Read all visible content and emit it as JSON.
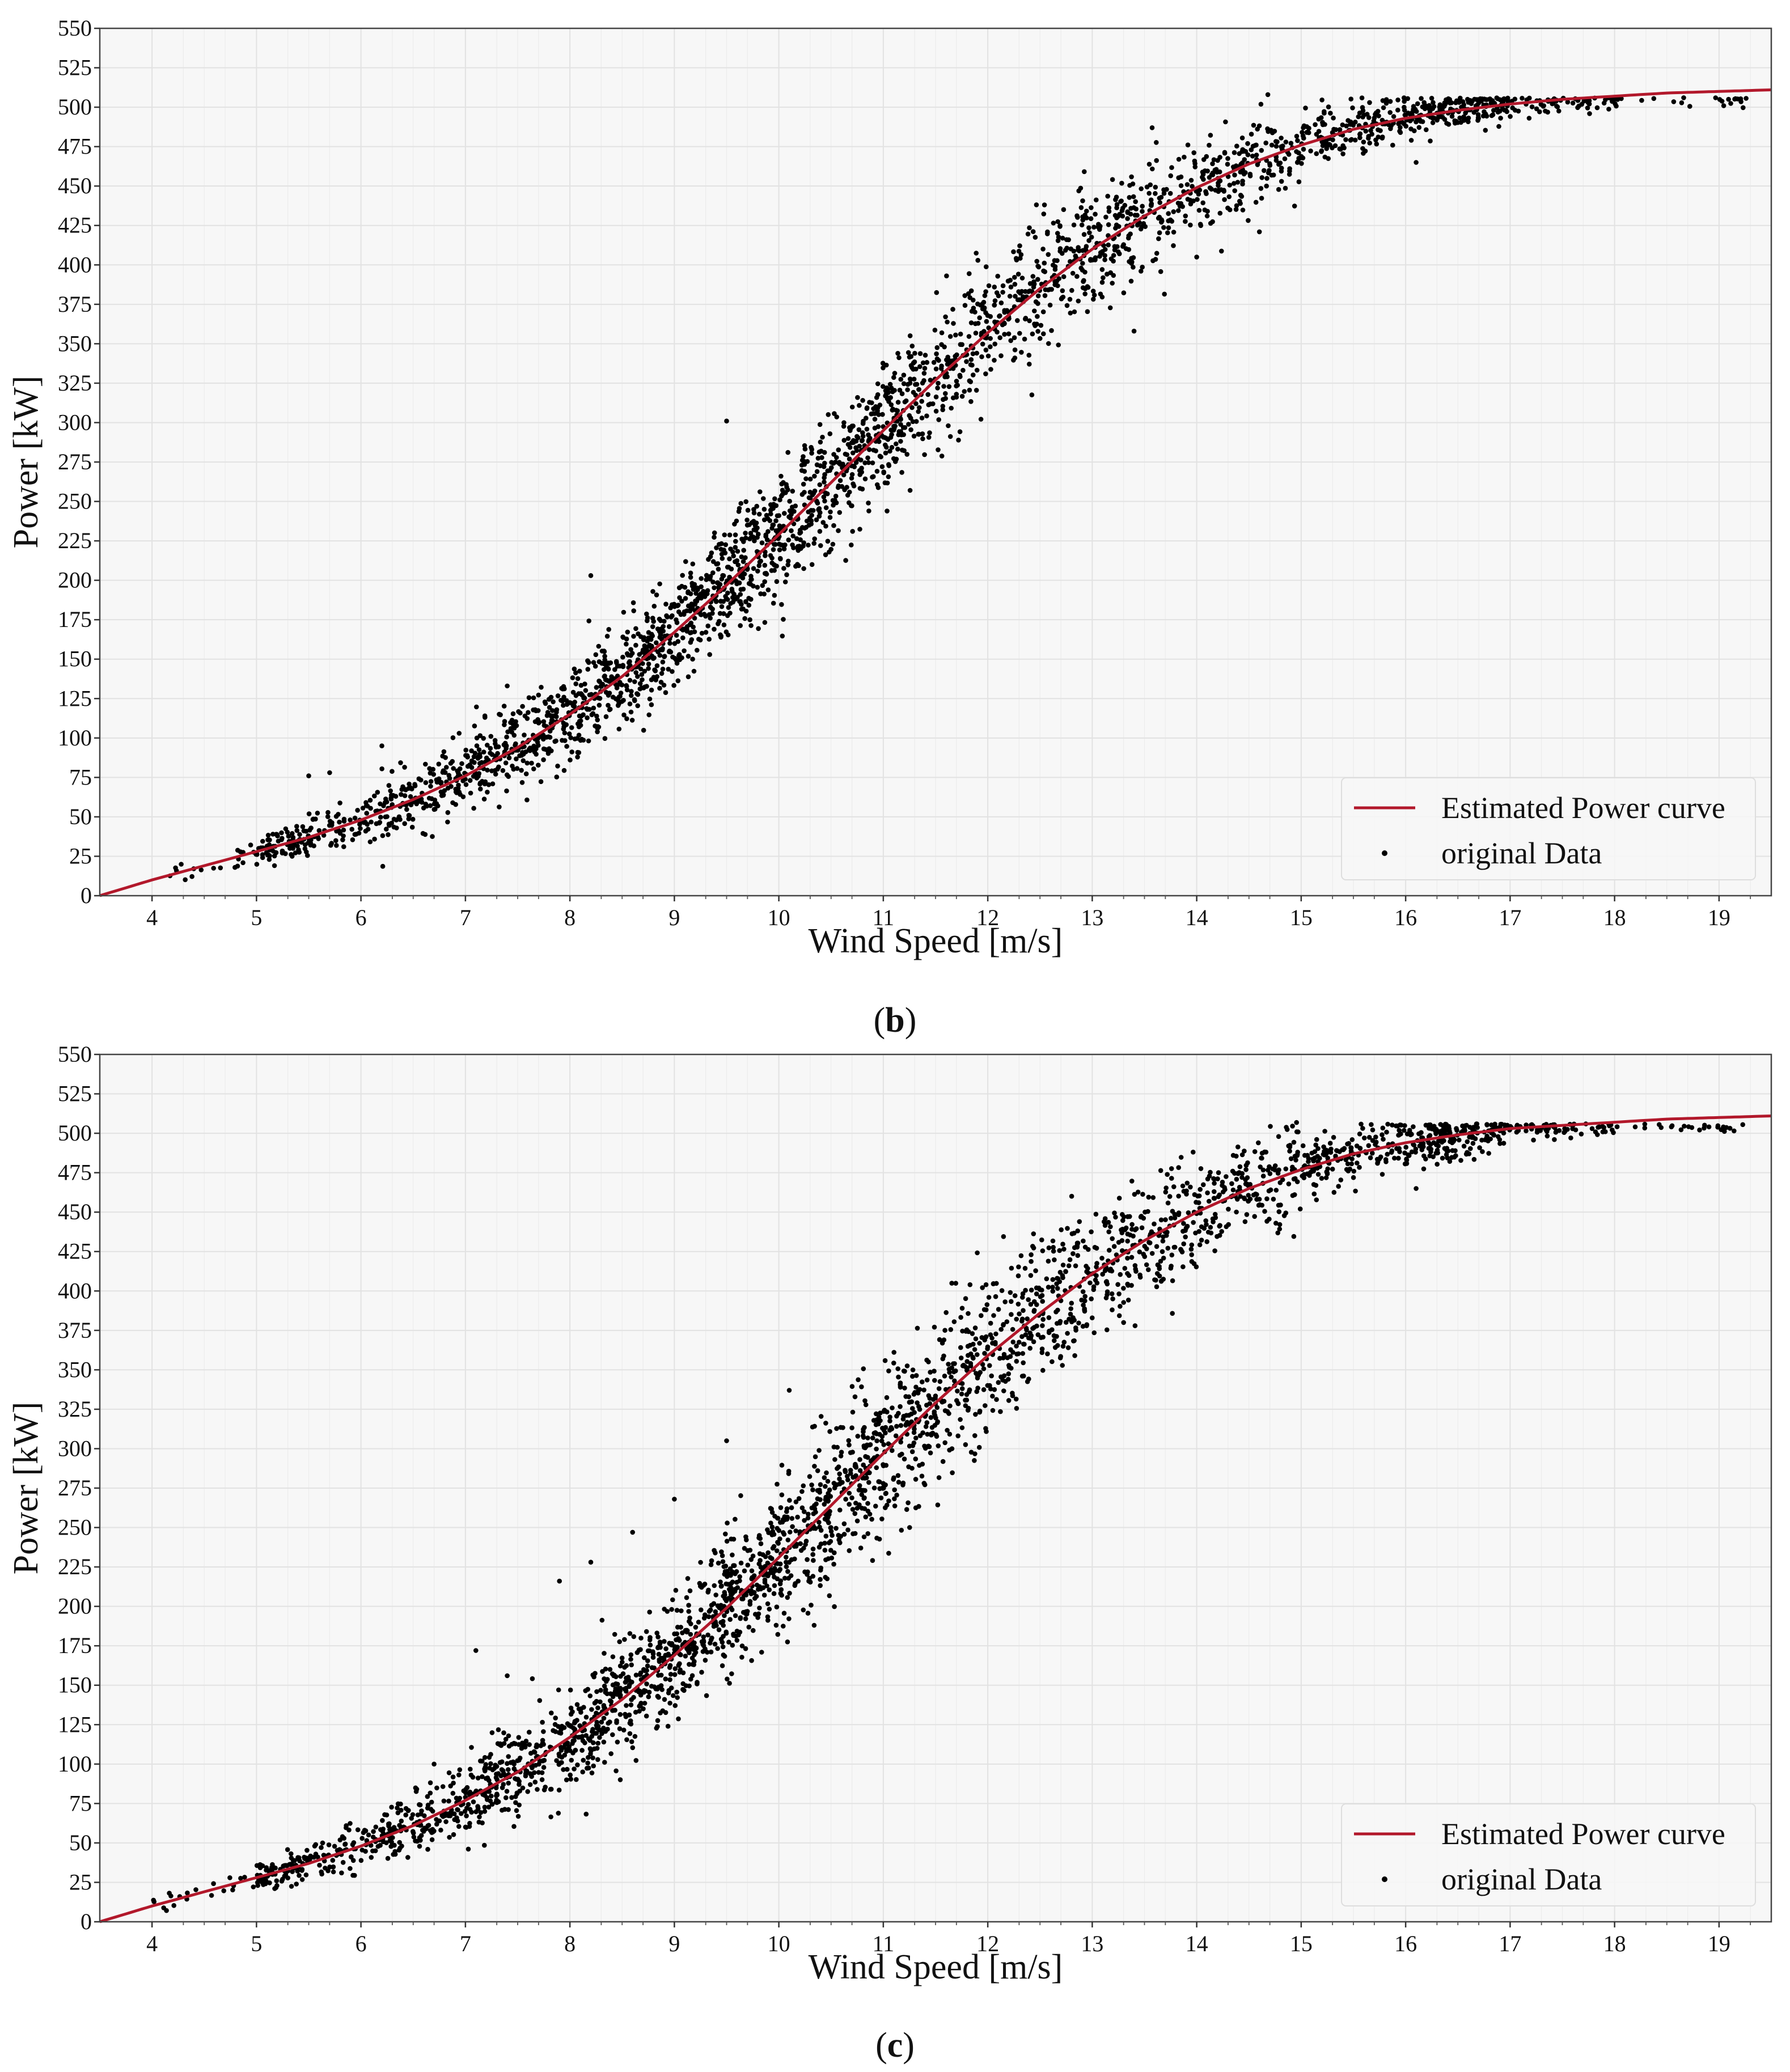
{
  "colors": {
    "curve": "#b2182b",
    "points": "#000000",
    "plot_background": "#f7f7f7"
  },
  "chart_data": [
    {
      "panel_label": "b",
      "type": "scatter",
      "xlabel": "Wind Speed [m/s]",
      "ylabel": "Power [kW]",
      "xlim": [
        3.5,
        19.5
      ],
      "ylim": [
        0,
        550
      ],
      "x_ticks": [
        "4",
        "5",
        "6",
        "7",
        "8",
        "9",
        "10",
        "11",
        "12",
        "13",
        "14",
        "15",
        "16",
        "17",
        "18",
        "19"
      ],
      "y_ticks": [
        "0",
        "25",
        "50",
        "75",
        "100",
        "125",
        "150",
        "175",
        "200",
        "225",
        "250",
        "275",
        "300",
        "325",
        "350",
        "375",
        "400",
        "425",
        "450",
        "475",
        "500",
        "525",
        "550"
      ],
      "grid": true,
      "legend": {
        "position": "lower-right",
        "entries": [
          "Estimated Power curve",
          "original Data"
        ]
      },
      "series": [
        {
          "name": "Estimated Power curve",
          "kind": "line",
          "x": [
            3.5,
            4,
            4.5,
            5,
            5.5,
            6,
            6.5,
            7,
            7.5,
            8,
            8.5,
            9,
            9.5,
            10,
            10.5,
            11,
            11.5,
            12,
            12.5,
            13,
            13.5,
            14,
            14.5,
            15,
            15.5,
            16,
            16.5,
            17,
            17.5,
            18,
            18.5,
            19,
            19.5
          ],
          "y": [
            0,
            10,
            19,
            28,
            37,
            48,
            61,
            76,
            94,
            115,
            139,
            167,
            197,
            229,
            262,
            295,
            327,
            357,
            385,
            410,
            431,
            449,
            464,
            476,
            486,
            493,
            498,
            502,
            505,
            507,
            509,
            510,
            511
          ]
        },
        {
          "name": "original Data",
          "kind": "scatter",
          "density": [
            {
              "x0": 4.0,
              "x1": 5.0,
              "n": 20,
              "spread": 4
            },
            {
              "x0": 5.0,
              "x1": 5.5,
              "n": 80,
              "spread": 5
            },
            {
              "x0": 5.5,
              "x1": 6.2,
              "n": 80,
              "spread": 7
            },
            {
              "x0": 6.2,
              "x1": 7.0,
              "n": 150,
              "spread": 10
            },
            {
              "x0": 7.0,
              "x1": 8.0,
              "n": 250,
              "spread": 13
            },
            {
              "x0": 8.0,
              "x1": 9.0,
              "n": 320,
              "spread": 16
            },
            {
              "x0": 9.0,
              "x1": 10.0,
              "n": 360,
              "spread": 18
            },
            {
              "x0": 10.0,
              "x1": 11.0,
              "n": 320,
              "spread": 20
            },
            {
              "x0": 11.0,
              "x1": 12.0,
              "n": 280,
              "spread": 22
            },
            {
              "x0": 12.0,
              "x1": 13.0,
              "n": 230,
              "spread": 21
            },
            {
              "x0": 13.0,
              "x1": 14.0,
              "n": 200,
              "spread": 17
            },
            {
              "x0": 14.0,
              "x1": 15.0,
              "n": 180,
              "spread": 14
            },
            {
              "x0": 15.0,
              "x1": 16.0,
              "n": 160,
              "spread": 9
            },
            {
              "x0": 16.0,
              "x1": 17.0,
              "n": 180,
              "spread": 6
            },
            {
              "x0": 17.0,
              "x1": 18.0,
              "n": 60,
              "spread": 4
            },
            {
              "x0": 18.0,
              "x1": 19.3,
              "n": 25,
              "spread": 2
            }
          ],
          "outliers": [
            {
              "x": 5.5,
              "y": 76
            },
            {
              "x": 5.7,
              "y": 78
            },
            {
              "x": 6.2,
              "y": 95
            },
            {
              "x": 7.4,
              "y": 133
            },
            {
              "x": 8.2,
              "y": 203
            },
            {
              "x": 9.5,
              "y": 301
            },
            {
              "x": 10.4,
              "y": 222
            },
            {
              "x": 11.7,
              "y": 318
            },
            {
              "x": 13.4,
              "y": 358
            },
            {
              "x": 14.0,
              "y": 405
            },
            {
              "x": 14.6,
              "y": 421
            },
            {
              "x": 16.1,
              "y": 465
            }
          ]
        }
      ]
    },
    {
      "panel_label": "c",
      "type": "scatter",
      "xlabel": "Wind Speed [m/s]",
      "ylabel": "Power [kW]",
      "xlim": [
        3.5,
        19.5
      ],
      "ylim": [
        0,
        550
      ],
      "x_ticks": [
        "4",
        "5",
        "6",
        "7",
        "8",
        "9",
        "10",
        "11",
        "12",
        "13",
        "14",
        "15",
        "16",
        "17",
        "18",
        "19"
      ],
      "y_ticks": [
        "0",
        "25",
        "50",
        "75",
        "100",
        "125",
        "150",
        "175",
        "200",
        "225",
        "250",
        "275",
        "300",
        "325",
        "350",
        "375",
        "400",
        "425",
        "450",
        "475",
        "500",
        "525",
        "550"
      ],
      "grid": true,
      "legend": {
        "position": "lower-right",
        "entries": [
          "Estimated Power curve",
          "original Data"
        ]
      },
      "series": [
        {
          "name": "Estimated Power curve",
          "kind": "line",
          "x": [
            3.5,
            4,
            4.5,
            5,
            5.5,
            6,
            6.5,
            7,
            7.5,
            8,
            8.5,
            9,
            9.5,
            10,
            10.5,
            11,
            11.5,
            12,
            12.5,
            13,
            13.5,
            14,
            14.5,
            15,
            15.5,
            16,
            16.5,
            17,
            17.5,
            18,
            18.5,
            19,
            19.5
          ],
          "y": [
            0,
            10,
            19,
            28,
            37,
            48,
            61,
            77,
            95,
            117,
            141,
            169,
            199,
            231,
            264,
            297,
            329,
            359,
            386,
            411,
            432,
            450,
            465,
            477,
            487,
            494,
            499,
            503,
            505,
            507,
            509,
            510,
            511
          ]
        },
        {
          "name": "original Data",
          "kind": "scatter",
          "density": [
            {
              "x0": 4.0,
              "x1": 5.0,
              "n": 20,
              "spread": 4
            },
            {
              "x0": 5.0,
              "x1": 5.5,
              "n": 80,
              "spread": 5
            },
            {
              "x0": 5.5,
              "x1": 6.2,
              "n": 80,
              "spread": 7
            },
            {
              "x0": 6.2,
              "x1": 7.0,
              "n": 150,
              "spread": 10
            },
            {
              "x0": 7.0,
              "x1": 8.0,
              "n": 250,
              "spread": 14
            },
            {
              "x0": 8.0,
              "x1": 9.0,
              "n": 320,
              "spread": 18
            },
            {
              "x0": 9.0,
              "x1": 10.0,
              "n": 360,
              "spread": 21
            },
            {
              "x0": 10.0,
              "x1": 11.0,
              "n": 330,
              "spread": 24
            },
            {
              "x0": 11.0,
              "x1": 12.0,
              "n": 300,
              "spread": 26
            },
            {
              "x0": 12.0,
              "x1": 13.0,
              "n": 250,
              "spread": 24
            },
            {
              "x0": 13.0,
              "x1": 14.0,
              "n": 210,
              "spread": 19
            },
            {
              "x0": 14.0,
              "x1": 15.0,
              "n": 180,
              "spread": 14
            },
            {
              "x0": 15.0,
              "x1": 16.0,
              "n": 160,
              "spread": 10
            },
            {
              "x0": 16.0,
              "x1": 17.0,
              "n": 180,
              "spread": 7
            },
            {
              "x0": 17.0,
              "x1": 18.0,
              "n": 60,
              "spread": 5
            },
            {
              "x0": 18.0,
              "x1": 19.3,
              "n": 25,
              "spread": 2
            }
          ],
          "outliers": [
            {
              "x": 6.7,
              "y": 100
            },
            {
              "x": 7.1,
              "y": 172
            },
            {
              "x": 7.4,
              "y": 156
            },
            {
              "x": 7.9,
              "y": 216
            },
            {
              "x": 8.2,
              "y": 228
            },
            {
              "x": 8.6,
              "y": 247
            },
            {
              "x": 9.0,
              "y": 268
            },
            {
              "x": 9.5,
              "y": 305
            },
            {
              "x": 10.1,
              "y": 337
            },
            {
              "x": 10.4,
              "y": 223
            },
            {
              "x": 13.3,
              "y": 380
            },
            {
              "x": 16.1,
              "y": 465
            }
          ]
        }
      ]
    }
  ]
}
